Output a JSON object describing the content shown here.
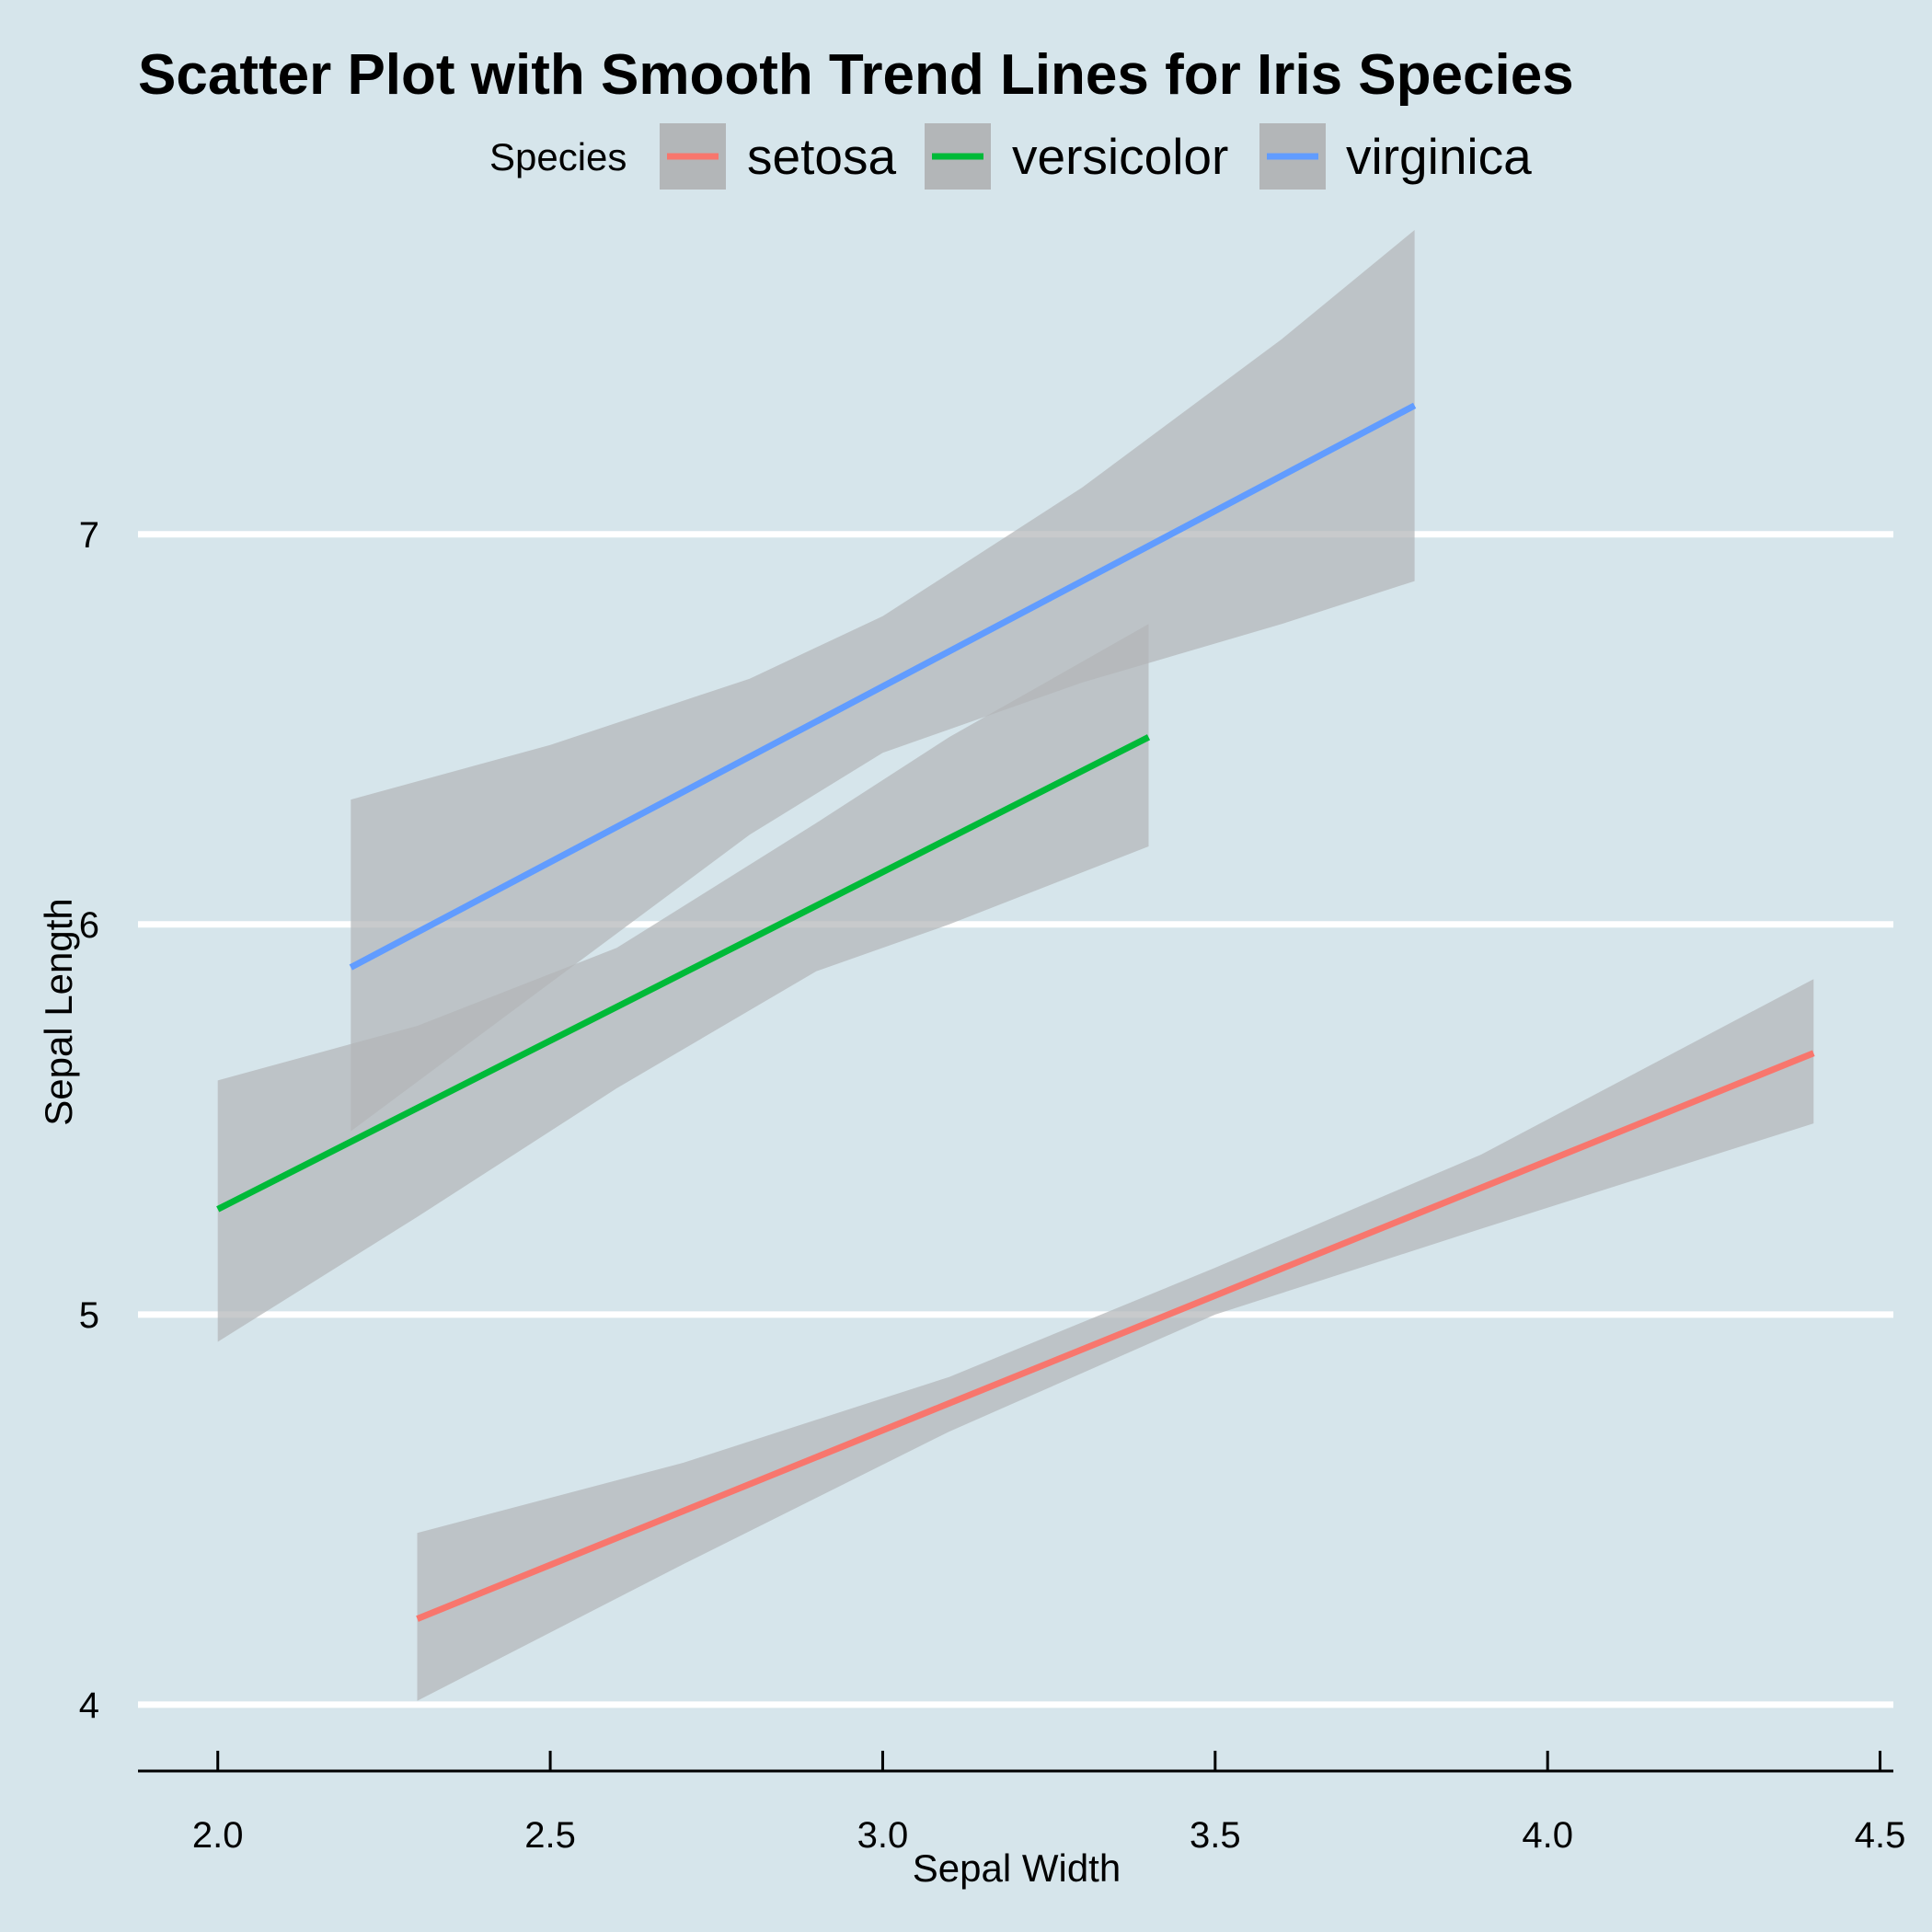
{
  "chart_data": {
    "type": "line",
    "title": "Scatter Plot with Smooth Trend Lines for Iris Species",
    "xlabel": "Sepal Width",
    "ylabel": "Sepal Length",
    "xlim": [
      1.88,
      4.52
    ],
    "ylim": [
      3.83,
      7.78
    ],
    "x_ticks": [
      2.0,
      2.5,
      3.0,
      3.5,
      4.0,
      4.5
    ],
    "x_tick_labels": [
      "2.0",
      "2.5",
      "3.0",
      "3.5",
      "4.0",
      "4.5"
    ],
    "y_ticks": [
      4,
      5,
      6,
      7
    ],
    "y_tick_labels": [
      "4",
      "5",
      "6",
      "7"
    ],
    "grid": "horizontal-major",
    "legend": {
      "title": "Species",
      "position": "top"
    },
    "band_color": "#b3b6b8",
    "series": [
      {
        "name": "setosa",
        "color": "#f8766d",
        "x": [
          2.3,
          4.4
        ],
        "y": [
          4.22,
          5.67
        ],
        "band": {
          "x": [
            2.3,
            2.7,
            3.1,
            3.5,
            3.9,
            4.4
          ],
          "lower": [
            4.01,
            4.36,
            4.7,
            5.0,
            5.22,
            5.49
          ],
          "upper": [
            4.44,
            4.62,
            4.84,
            5.12,
            5.41,
            5.86
          ]
        }
      },
      {
        "name": "versicolor",
        "color": "#00ba38",
        "x": [
          2.0,
          3.4
        ],
        "y": [
          5.27,
          6.48
        ],
        "band": {
          "x": [
            2.0,
            2.3,
            2.6,
            2.9,
            3.1,
            3.4
          ],
          "lower": [
            4.93,
            5.25,
            5.58,
            5.88,
            6.0,
            6.2
          ],
          "upper": [
            5.6,
            5.74,
            5.94,
            6.26,
            6.48,
            6.77
          ]
        }
      },
      {
        "name": "virginica",
        "color": "#619cff",
        "x": [
          2.2,
          3.8
        ],
        "y": [
          5.89,
          7.33
        ],
        "band": {
          "x": [
            2.2,
            2.5,
            2.8,
            3.0,
            3.3,
            3.6,
            3.8
          ],
          "lower": [
            5.47,
            5.85,
            6.23,
            6.44,
            6.62,
            6.77,
            6.88
          ],
          "upper": [
            6.32,
            6.46,
            6.63,
            6.79,
            7.12,
            7.5,
            7.78
          ]
        }
      }
    ]
  }
}
